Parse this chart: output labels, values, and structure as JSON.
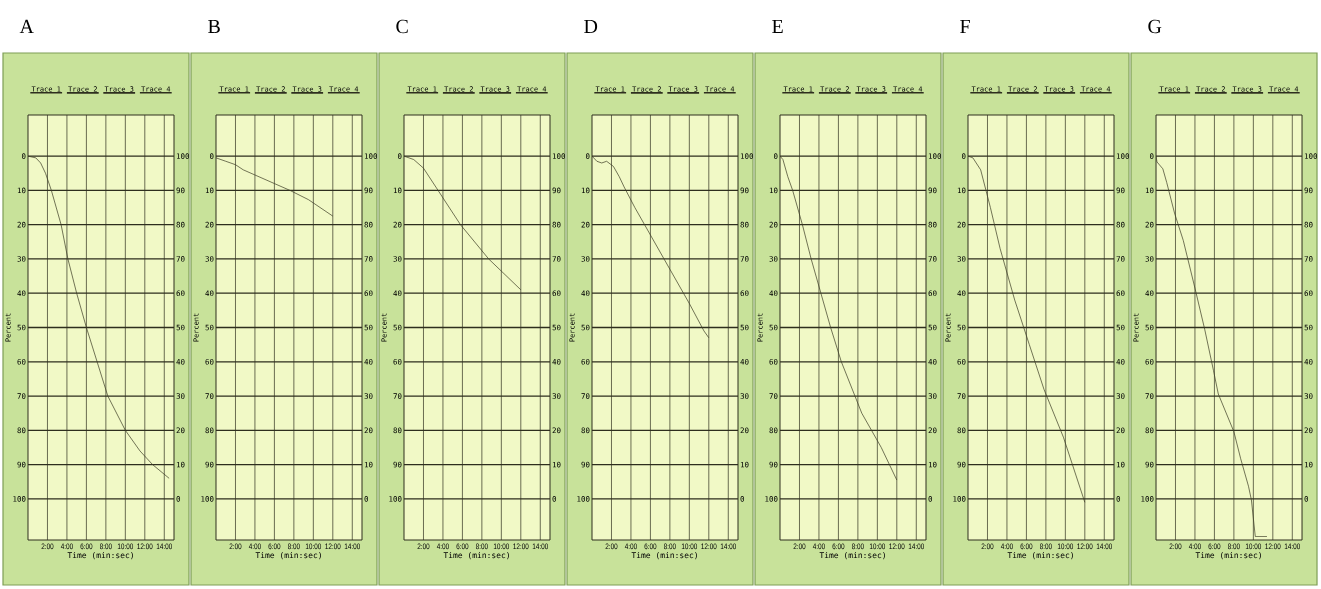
{
  "chart_data": [
    {
      "type": "line",
      "title": "A",
      "xlabel": "Time (min:sec)",
      "ylabel": "Percent",
      "annotations": [
        "Trace 1",
        "Trace 2",
        "Trace 3",
        "Trace 4"
      ],
      "grid": true,
      "xlim": [
        0,
        15
      ],
      "xticks": [
        {
          "value": 2,
          "label": "2:00"
        },
        {
          "value": 4,
          "label": "4:00"
        },
        {
          "value": 6,
          "label": "6:00"
        },
        {
          "value": 8,
          "label": "8:00"
        },
        {
          "value": 10,
          "label": "10:00"
        },
        {
          "value": 12,
          "label": "12:00"
        },
        {
          "value": 14,
          "label": "14:00"
        }
      ],
      "ylim": [
        112,
        -12
      ],
      "yticks": [
        0,
        10,
        20,
        30,
        40,
        50,
        60,
        70,
        80,
        90,
        100
      ],
      "y2lim": [
        -12,
        112
      ],
      "y2ticks": [
        0,
        10,
        20,
        30,
        40,
        50,
        60,
        70,
        80,
        90,
        100
      ],
      "series": [
        {
          "color": "#3a3a22",
          "x": [
            0,
            0.8,
            1.3,
            1.8,
            2.4,
            3.4,
            4.1,
            5,
            6,
            7.1,
            8.2,
            10,
            11.5,
            12.8,
            14.5
          ],
          "values": [
            0,
            0.5,
            2,
            5,
            10,
            20,
            30,
            40,
            50,
            60,
            70,
            80,
            86,
            90,
            94
          ]
        }
      ]
    },
    {
      "type": "line",
      "title": "B",
      "xlabel": "Time (min:sec)",
      "ylabel": "Percent",
      "annotations": [
        "Trace 1",
        "Trace 2",
        "Trace 3",
        "Trace 4"
      ],
      "grid": true,
      "xlim": [
        0,
        15
      ],
      "xticks": [
        {
          "value": 2,
          "label": "2:00"
        },
        {
          "value": 4,
          "label": "4:00"
        },
        {
          "value": 6,
          "label": "6:00"
        },
        {
          "value": 8,
          "label": "8:00"
        },
        {
          "value": 10,
          "label": "10:00"
        },
        {
          "value": 12,
          "label": "12:00"
        },
        {
          "value": 14,
          "label": "14:00"
        }
      ],
      "ylim": [
        112,
        -12
      ],
      "yticks": [
        0,
        10,
        20,
        30,
        40,
        50,
        60,
        70,
        80,
        90,
        100
      ],
      "y2lim": [
        -12,
        112
      ],
      "y2ticks": [
        0,
        10,
        20,
        30,
        40,
        50,
        60,
        70,
        80,
        90,
        100
      ],
      "series": [
        {
          "color": "#3a3a22",
          "x": [
            0,
            1,
            2,
            2.8,
            4,
            6,
            7.6,
            9.5,
            12
          ],
          "values": [
            0.5,
            1.5,
            2.5,
            4,
            5.5,
            8,
            10,
            12.7,
            17.5
          ]
        }
      ]
    },
    {
      "type": "line",
      "title": "C",
      "xlabel": "Time (min:sec)",
      "ylabel": "Percent",
      "annotations": [
        "Trace 1",
        "Trace 2",
        "Trace 3",
        "Trace 4"
      ],
      "grid": true,
      "xlim": [
        0,
        15
      ],
      "xticks": [
        {
          "value": 2,
          "label": "2:00"
        },
        {
          "value": 4,
          "label": "4:00"
        },
        {
          "value": 6,
          "label": "6:00"
        },
        {
          "value": 8,
          "label": "8:00"
        },
        {
          "value": 10,
          "label": "10:00"
        },
        {
          "value": 12,
          "label": "12:00"
        },
        {
          "value": 14,
          "label": "14:00"
        }
      ],
      "ylim": [
        112,
        -12
      ],
      "yticks": [
        0,
        10,
        20,
        30,
        40,
        50,
        60,
        70,
        80,
        90,
        100
      ],
      "y2lim": [
        -12,
        112
      ],
      "y2ticks": [
        0,
        10,
        20,
        30,
        40,
        50,
        60,
        70,
        80,
        90,
        100
      ],
      "series": [
        {
          "color": "#3a3a22",
          "x": [
            0,
            1,
            2,
            3.5,
            5.8,
            8.7,
            12
          ],
          "values": [
            0,
            1,
            3.5,
            10,
            20,
            30,
            39
          ]
        }
      ]
    },
    {
      "type": "line",
      "title": "D",
      "xlabel": "Time (min:sec)",
      "ylabel": "Percent",
      "annotations": [
        "Trace 1",
        "Trace 2",
        "Trace 3",
        "Trace 4"
      ],
      "grid": true,
      "xlim": [
        0,
        15
      ],
      "xticks": [
        {
          "value": 2,
          "label": "2:00"
        },
        {
          "value": 4,
          "label": "4:00"
        },
        {
          "value": 6,
          "label": "6:00"
        },
        {
          "value": 8,
          "label": "8:00"
        },
        {
          "value": 10,
          "label": "10:00"
        },
        {
          "value": 12,
          "label": "12:00"
        },
        {
          "value": 14,
          "label": "14:00"
        }
      ],
      "ylim": [
        112,
        -12
      ],
      "yticks": [
        0,
        10,
        20,
        30,
        40,
        50,
        60,
        70,
        80,
        90,
        100
      ],
      "y2lim": [
        -12,
        112
      ],
      "y2ticks": [
        0,
        10,
        20,
        30,
        40,
        50,
        60,
        70,
        80,
        90,
        100
      ],
      "series": [
        {
          "color": "#3a3a22",
          "x": [
            0,
            0.5,
            1,
            1.5,
            2.2,
            2.8,
            3.3,
            4.4,
            6,
            8,
            10,
            11.5,
            12
          ],
          "values": [
            0,
            1.5,
            2,
            1.5,
            3,
            6,
            9,
            15,
            23,
            33,
            43,
            51,
            53
          ]
        }
      ]
    },
    {
      "type": "line",
      "title": "E",
      "xlabel": "Time (min:sec)",
      "ylabel": "Percent",
      "annotations": [
        "Trace 1",
        "Trace 2",
        "Trace 3",
        "Trace 4"
      ],
      "grid": true,
      "xlim": [
        0,
        15
      ],
      "xticks": [
        {
          "value": 2,
          "label": "2:00"
        },
        {
          "value": 4,
          "label": "4:00"
        },
        {
          "value": 6,
          "label": "6:00"
        },
        {
          "value": 8,
          "label": "8:00"
        },
        {
          "value": 10,
          "label": "10:00"
        },
        {
          "value": 12,
          "label": "12:00"
        },
        {
          "value": 14,
          "label": "14:00"
        }
      ],
      "ylim": [
        112,
        -12
      ],
      "yticks": [
        0,
        10,
        20,
        30,
        40,
        50,
        60,
        70,
        80,
        90,
        100
      ],
      "y2lim": [
        -12,
        112
      ],
      "y2ticks": [
        0,
        10,
        20,
        30,
        40,
        50,
        60,
        70,
        80,
        90,
        100
      ],
      "series": [
        {
          "color": "#3a3a22",
          "x": [
            0,
            0.3,
            0.8,
            1.3,
            2.3,
            3.2,
            4.2,
            5.2,
            6.3,
            7.7,
            8.4,
            9.4,
            10.4,
            12
          ],
          "values": [
            0,
            1,
            6,
            10,
            20,
            30,
            40,
            50,
            60,
            70,
            75,
            80,
            85,
            94.5
          ]
        }
      ]
    },
    {
      "type": "line",
      "title": "F",
      "xlabel": "Time (min:sec)",
      "ylabel": "Percent",
      "annotations": [
        "Trace 1",
        "Trace 2",
        "Trace 3",
        "Trace 4"
      ],
      "grid": true,
      "xlim": [
        0,
        15
      ],
      "xticks": [
        {
          "value": 2,
          "label": "2:00"
        },
        {
          "value": 4,
          "label": "4:00"
        },
        {
          "value": 6,
          "label": "6:00"
        },
        {
          "value": 8,
          "label": "8:00"
        },
        {
          "value": 10,
          "label": "10:00"
        },
        {
          "value": 12,
          "label": "12:00"
        },
        {
          "value": 14,
          "label": "14:00"
        }
      ],
      "ylim": [
        112,
        -12
      ],
      "yticks": [
        0,
        10,
        20,
        30,
        40,
        50,
        60,
        70,
        80,
        90,
        100
      ],
      "y2lim": [
        -12,
        112
      ],
      "y2ticks": [
        0,
        10,
        20,
        30,
        40,
        50,
        60,
        70,
        80,
        90,
        100
      ],
      "series": [
        {
          "color": "#3a3a22",
          "x": [
            0,
            0.5,
            1.3,
            2.3,
            3.3,
            4.8,
            6.3,
            7.8,
            9.8,
            12
          ],
          "values": [
            0,
            0.5,
            4,
            15,
            27,
            42,
            55,
            68,
            82,
            101
          ]
        }
      ]
    },
    {
      "type": "line",
      "title": "G",
      "xlabel": "Time (min:sec)",
      "ylabel": "Percent",
      "annotations": [
        "Trace 1",
        "Trace 2",
        "Trace 3",
        "Trace 4"
      ],
      "grid": true,
      "xlim": [
        0,
        15
      ],
      "xticks": [
        {
          "value": 2,
          "label": "2:00"
        },
        {
          "value": 4,
          "label": "4:00"
        },
        {
          "value": 6,
          "label": "6:00"
        },
        {
          "value": 8,
          "label": "8:00"
        },
        {
          "value": 10,
          "label": "10:00"
        },
        {
          "value": 12,
          "label": "12:00"
        },
        {
          "value": 14,
          "label": "14:00"
        }
      ],
      "ylim": [
        112,
        -12
      ],
      "yticks": [
        0,
        10,
        20,
        30,
        40,
        50,
        60,
        70,
        80,
        90,
        100
      ],
      "y2lim": [
        -12,
        112
      ],
      "y2ticks": [
        0,
        10,
        20,
        30,
        40,
        50,
        60,
        70,
        80,
        90,
        100
      ],
      "series": [
        {
          "color": "#3a3a22",
          "x": [
            0,
            0.1,
            0.7,
            1.1,
            1.9,
            2.8,
            4,
            5,
            5.9,
            6.4,
            8,
            8.7,
            9.5,
            9.8,
            10.2,
            11.4
          ],
          "values": [
            0,
            1.7,
            3.7,
            7.7,
            16.6,
            24.6,
            38.5,
            50.5,
            62.5,
            69.4,
            80.4,
            88.3,
            96.3,
            100.3,
            111,
            111
          ]
        }
      ]
    }
  ]
}
